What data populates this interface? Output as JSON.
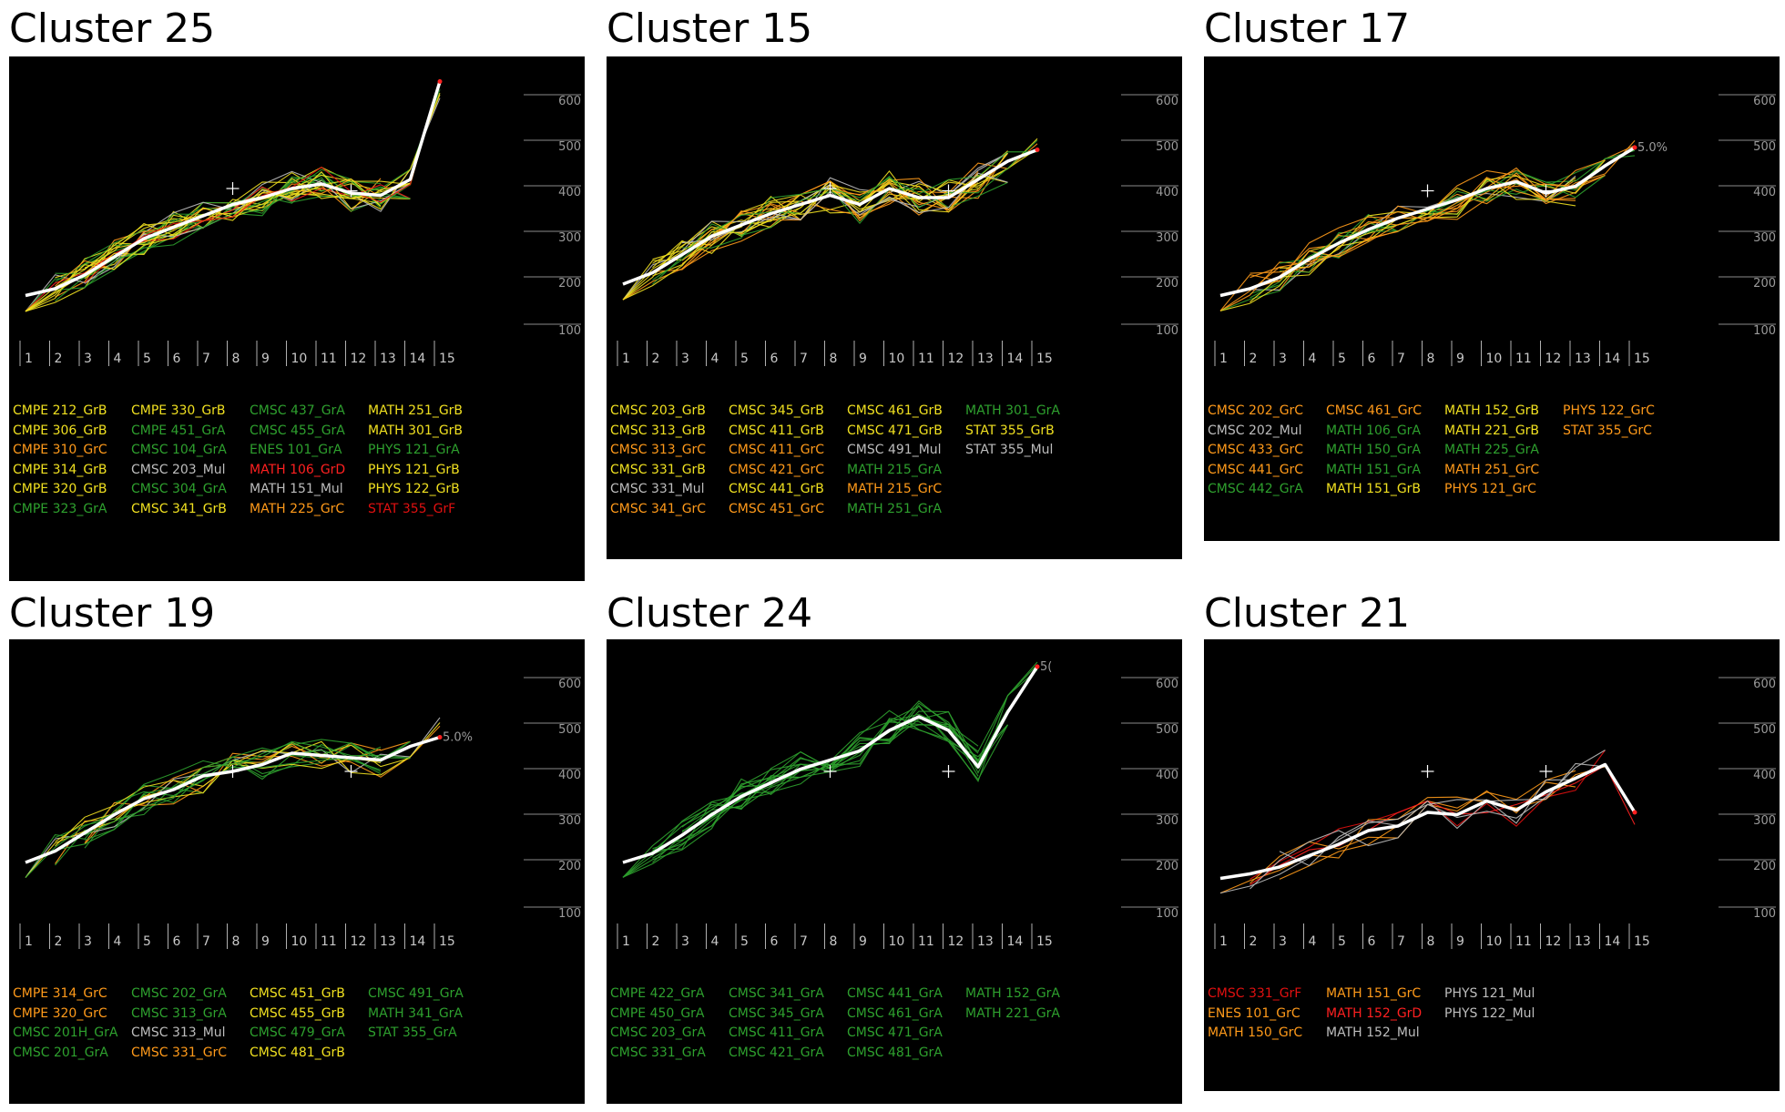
{
  "colors": {
    "A": "#2ea02e",
    "B": "#f0e020",
    "C": "#ff9a1a",
    "D": "#ff2020",
    "F": "#e01010",
    "Mul": "#bdbdbd",
    "mean": "#ffffff",
    "background": "#000000"
  },
  "chart_data": [
    {
      "type": "line",
      "title": "Cluster 25",
      "x": [
        1,
        2,
        3,
        4,
        5,
        6,
        7,
        8,
        9,
        10,
        11,
        12,
        13,
        14,
        15
      ],
      "y_ticks": [
        100,
        200,
        300,
        400,
        500,
        600
      ],
      "ylim": [
        100,
        650
      ],
      "mean": [
        175,
        190,
        220,
        260,
        300,
        325,
        350,
        375,
        390,
        410,
        420,
        400,
        395,
        430,
        645
      ],
      "variance_marks": [
        [
          8,
          410
        ],
        [
          12,
          405
        ]
      ],
      "legend": [
        {
          "label": "CMPE 212_GrB",
          "grade": "B"
        },
        {
          "label": "CMPE 306_GrB",
          "grade": "B"
        },
        {
          "label": "CMPE 310_GrC",
          "grade": "C"
        },
        {
          "label": "CMPE 314_GrB",
          "grade": "B"
        },
        {
          "label": "CMPE 320_GrB",
          "grade": "B"
        },
        {
          "label": "CMPE 323_GrA",
          "grade": "A"
        },
        {
          "label": "CMPE 330_GrB",
          "grade": "B"
        },
        {
          "label": "CMPE 451_GrA",
          "grade": "A"
        },
        {
          "label": "CMSC 104_GrA",
          "grade": "A"
        },
        {
          "label": "CMSC 203_Mul",
          "grade": "Mul"
        },
        {
          "label": "CMSC 304_GrA",
          "grade": "A"
        },
        {
          "label": "CMSC 341_GrB",
          "grade": "B"
        },
        {
          "label": "CMSC 437_GrA",
          "grade": "A"
        },
        {
          "label": "CMSC 455_GrA",
          "grade": "A"
        },
        {
          "label": "ENES 101_GrA",
          "grade": "A"
        },
        {
          "label": "MATH 106_GrD",
          "grade": "D"
        },
        {
          "label": "MATH 151_Mul",
          "grade": "Mul"
        },
        {
          "label": "MATH 225_GrC",
          "grade": "C"
        },
        {
          "label": "MATH 251_GrB",
          "grade": "B"
        },
        {
          "label": "MATH 301_GrB",
          "grade": "B"
        },
        {
          "label": "PHYS 121_GrA",
          "grade": "A"
        },
        {
          "label": "PHYS 121_GrB",
          "grade": "B"
        },
        {
          "label": "PHYS 122_GrB",
          "grade": "B"
        },
        {
          "label": "STAT 355_GrF",
          "grade": "F"
        }
      ]
    },
    {
      "type": "line",
      "title": "Cluster 15",
      "x": [
        1,
        2,
        3,
        4,
        5,
        6,
        7,
        8,
        9,
        10,
        11,
        12,
        13,
        14,
        15
      ],
      "y_ticks": [
        100,
        200,
        300,
        400,
        500,
        600
      ],
      "ylim": [
        100,
        650
      ],
      "mean": [
        200,
        225,
        265,
        305,
        330,
        355,
        375,
        395,
        375,
        410,
        390,
        390,
        430,
        470,
        495
      ],
      "variance_marks": [
        [
          8,
          410
        ],
        [
          12,
          405
        ]
      ],
      "legend": [
        {
          "label": "CMSC 203_GrB",
          "grade": "B"
        },
        {
          "label": "CMSC 313_GrB",
          "grade": "B"
        },
        {
          "label": "CMSC 313_GrC",
          "grade": "C"
        },
        {
          "label": "CMSC 331_GrB",
          "grade": "B"
        },
        {
          "label": "CMSC 331_Mul",
          "grade": "Mul"
        },
        {
          "label": "CMSC 341_GrC",
          "grade": "C"
        },
        {
          "label": "CMSC 345_GrB",
          "grade": "B"
        },
        {
          "label": "CMSC 411_GrB",
          "grade": "B"
        },
        {
          "label": "CMSC 411_GrC",
          "grade": "C"
        },
        {
          "label": "CMSC 421_GrC",
          "grade": "C"
        },
        {
          "label": "CMSC 441_GrB",
          "grade": "B"
        },
        {
          "label": "CMSC 451_GrC",
          "grade": "C"
        },
        {
          "label": "CMSC 461_GrB",
          "grade": "B"
        },
        {
          "label": "CMSC 471_GrB",
          "grade": "B"
        },
        {
          "label": "CMSC 491_Mul",
          "grade": "Mul"
        },
        {
          "label": "MATH 215_GrA",
          "grade": "A"
        },
        {
          "label": "MATH 215_GrC",
          "grade": "C"
        },
        {
          "label": "MATH 251_GrA",
          "grade": "A"
        },
        {
          "label": "MATH 301_GrA",
          "grade": "A"
        },
        {
          "label": "STAT 355_GrB",
          "grade": "B"
        },
        {
          "label": "STAT 355_Mul",
          "grade": "Mul"
        }
      ]
    },
    {
      "type": "line",
      "title": "Cluster 17",
      "x": [
        1,
        2,
        3,
        4,
        5,
        6,
        7,
        8,
        9,
        10,
        11,
        12,
        13,
        14,
        15
      ],
      "y_ticks": [
        100,
        200,
        300,
        400,
        500,
        600
      ],
      "ylim": [
        100,
        650
      ],
      "mean": [
        175,
        190,
        215,
        255,
        290,
        320,
        345,
        365,
        385,
        410,
        425,
        400,
        415,
        460,
        500
      ],
      "variance_marks": [
        [
          8,
          405
        ],
        [
          12,
          405
        ]
      ],
      "end_label": "5.0%",
      "legend": [
        {
          "label": "CMSC 202_GrC",
          "grade": "C"
        },
        {
          "label": "CMSC 202_Mul",
          "grade": "Mul"
        },
        {
          "label": "CMSC 433_GrC",
          "grade": "C"
        },
        {
          "label": "CMSC 441_GrC",
          "grade": "C"
        },
        {
          "label": "CMSC 442_GrA",
          "grade": "A"
        },
        {
          "label": "CMSC 461_GrC",
          "grade": "C"
        },
        {
          "label": "MATH 106_GrA",
          "grade": "A"
        },
        {
          "label": "MATH 150_GrA",
          "grade": "A"
        },
        {
          "label": "MATH 151_GrA",
          "grade": "A"
        },
        {
          "label": "MATH 151_GrB",
          "grade": "B"
        },
        {
          "label": "MATH 152_GrB",
          "grade": "B"
        },
        {
          "label": "MATH 221_GrB",
          "grade": "B"
        },
        {
          "label": "MATH 225_GrA",
          "grade": "A"
        },
        {
          "label": "MATH 251_GrC",
          "grade": "C"
        },
        {
          "label": "PHYS 121_GrC",
          "grade": "C"
        },
        {
          "label": "PHYS 122_GrC",
          "grade": "C"
        },
        {
          "label": "STAT 355_GrC",
          "grade": "C"
        }
      ]
    },
    {
      "type": "line",
      "title": "Cluster 19",
      "x": [
        1,
        2,
        3,
        4,
        5,
        6,
        7,
        8,
        9,
        10,
        11,
        12,
        13,
        14,
        15
      ],
      "y_ticks": [
        100,
        200,
        300,
        400,
        500,
        600
      ],
      "ylim": [
        100,
        650
      ],
      "mean": [
        210,
        235,
        275,
        315,
        350,
        370,
        400,
        410,
        425,
        450,
        445,
        440,
        435,
        465,
        485
      ],
      "variance_marks": [
        [
          8,
          410
        ],
        [
          12,
          410
        ]
      ],
      "end_label": "5.0%",
      "legend": [
        {
          "label": "CMPE 314_GrC",
          "grade": "C"
        },
        {
          "label": "CMPE 320_GrC",
          "grade": "C"
        },
        {
          "label": "CMSC 201H_GrA",
          "grade": "A"
        },
        {
          "label": "CMSC 201_GrA",
          "grade": "A"
        },
        {
          "label": "CMSC 202_GrA",
          "grade": "A"
        },
        {
          "label": "CMSC 313_GrA",
          "grade": "A"
        },
        {
          "label": "CMSC 313_Mul",
          "grade": "Mul"
        },
        {
          "label": "CMSC 331_GrC",
          "grade": "C"
        },
        {
          "label": "CMSC 451_GrB",
          "grade": "B"
        },
        {
          "label": "CMSC 455_GrB",
          "grade": "B"
        },
        {
          "label": "CMSC 479_GrA",
          "grade": "A"
        },
        {
          "label": "CMSC 481_GrB",
          "grade": "B"
        },
        {
          "label": "CMSC 491_GrA",
          "grade": "A"
        },
        {
          "label": "MATH 341_GrA",
          "grade": "A"
        },
        {
          "label": "STAT 355_GrA",
          "grade": "A"
        }
      ]
    },
    {
      "type": "line",
      "title": "Cluster 24",
      "x": [
        1,
        2,
        3,
        4,
        5,
        6,
        7,
        8,
        9,
        10,
        11,
        12,
        13,
        14,
        15
      ],
      "y_ticks": [
        100,
        200,
        300,
        400,
        500,
        600
      ],
      "ylim": [
        100,
        650
      ],
      "mean": [
        210,
        230,
        270,
        315,
        355,
        385,
        415,
        435,
        455,
        500,
        530,
        500,
        420,
        540,
        640
      ],
      "variance_marks": [
        [
          8,
          410
        ],
        [
          12,
          410
        ]
      ],
      "end_label": "5(",
      "legend": [
        {
          "label": "CMPE 422_GrA",
          "grade": "A"
        },
        {
          "label": "CMPE 450_GrA",
          "grade": "A"
        },
        {
          "label": "CMSC 203_GrA",
          "grade": "A"
        },
        {
          "label": "CMSC 331_GrA",
          "grade": "A"
        },
        {
          "label": "CMSC 341_GrA",
          "grade": "A"
        },
        {
          "label": "CMSC 345_GrA",
          "grade": "A"
        },
        {
          "label": "CMSC 411_GrA",
          "grade": "A"
        },
        {
          "label": "CMSC 421_GrA",
          "grade": "A"
        },
        {
          "label": "CMSC 441_GrA",
          "grade": "A"
        },
        {
          "label": "CMSC 461_GrA",
          "grade": "A"
        },
        {
          "label": "CMSC 471_GrA",
          "grade": "A"
        },
        {
          "label": "CMSC 481_GrA",
          "grade": "A"
        },
        {
          "label": "MATH 152_GrA",
          "grade": "A"
        },
        {
          "label": "MATH 221_GrA",
          "grade": "A"
        }
      ]
    },
    {
      "type": "line",
      "title": "Cluster 21",
      "x": [
        1,
        2,
        3,
        4,
        5,
        6,
        7,
        8,
        9,
        10,
        11,
        12,
        13,
        14,
        15
      ],
      "y_ticks": [
        100,
        200,
        300,
        400,
        500,
        600
      ],
      "ylim": [
        100,
        650
      ],
      "mean": [
        175,
        185,
        200,
        225,
        250,
        280,
        290,
        320,
        315,
        345,
        325,
        365,
        395,
        425,
        320
      ],
      "variance_marks": [
        [
          8,
          410
        ],
        [
          12,
          410
        ]
      ],
      "legend": [
        {
          "label": "CMSC 331_GrF",
          "grade": "F"
        },
        {
          "label": "ENES 101_GrC",
          "grade": "C"
        },
        {
          "label": "MATH 150_GrC",
          "grade": "C"
        },
        {
          "label": "MATH 151_GrC",
          "grade": "C"
        },
        {
          "label": "MATH 152_GrD",
          "grade": "D"
        },
        {
          "label": "MATH 152_Mul",
          "grade": "Mul"
        },
        {
          "label": "PHYS 121_Mul",
          "grade": "Mul"
        },
        {
          "label": "PHYS 122_Mul",
          "grade": "Mul"
        }
      ]
    }
  ]
}
